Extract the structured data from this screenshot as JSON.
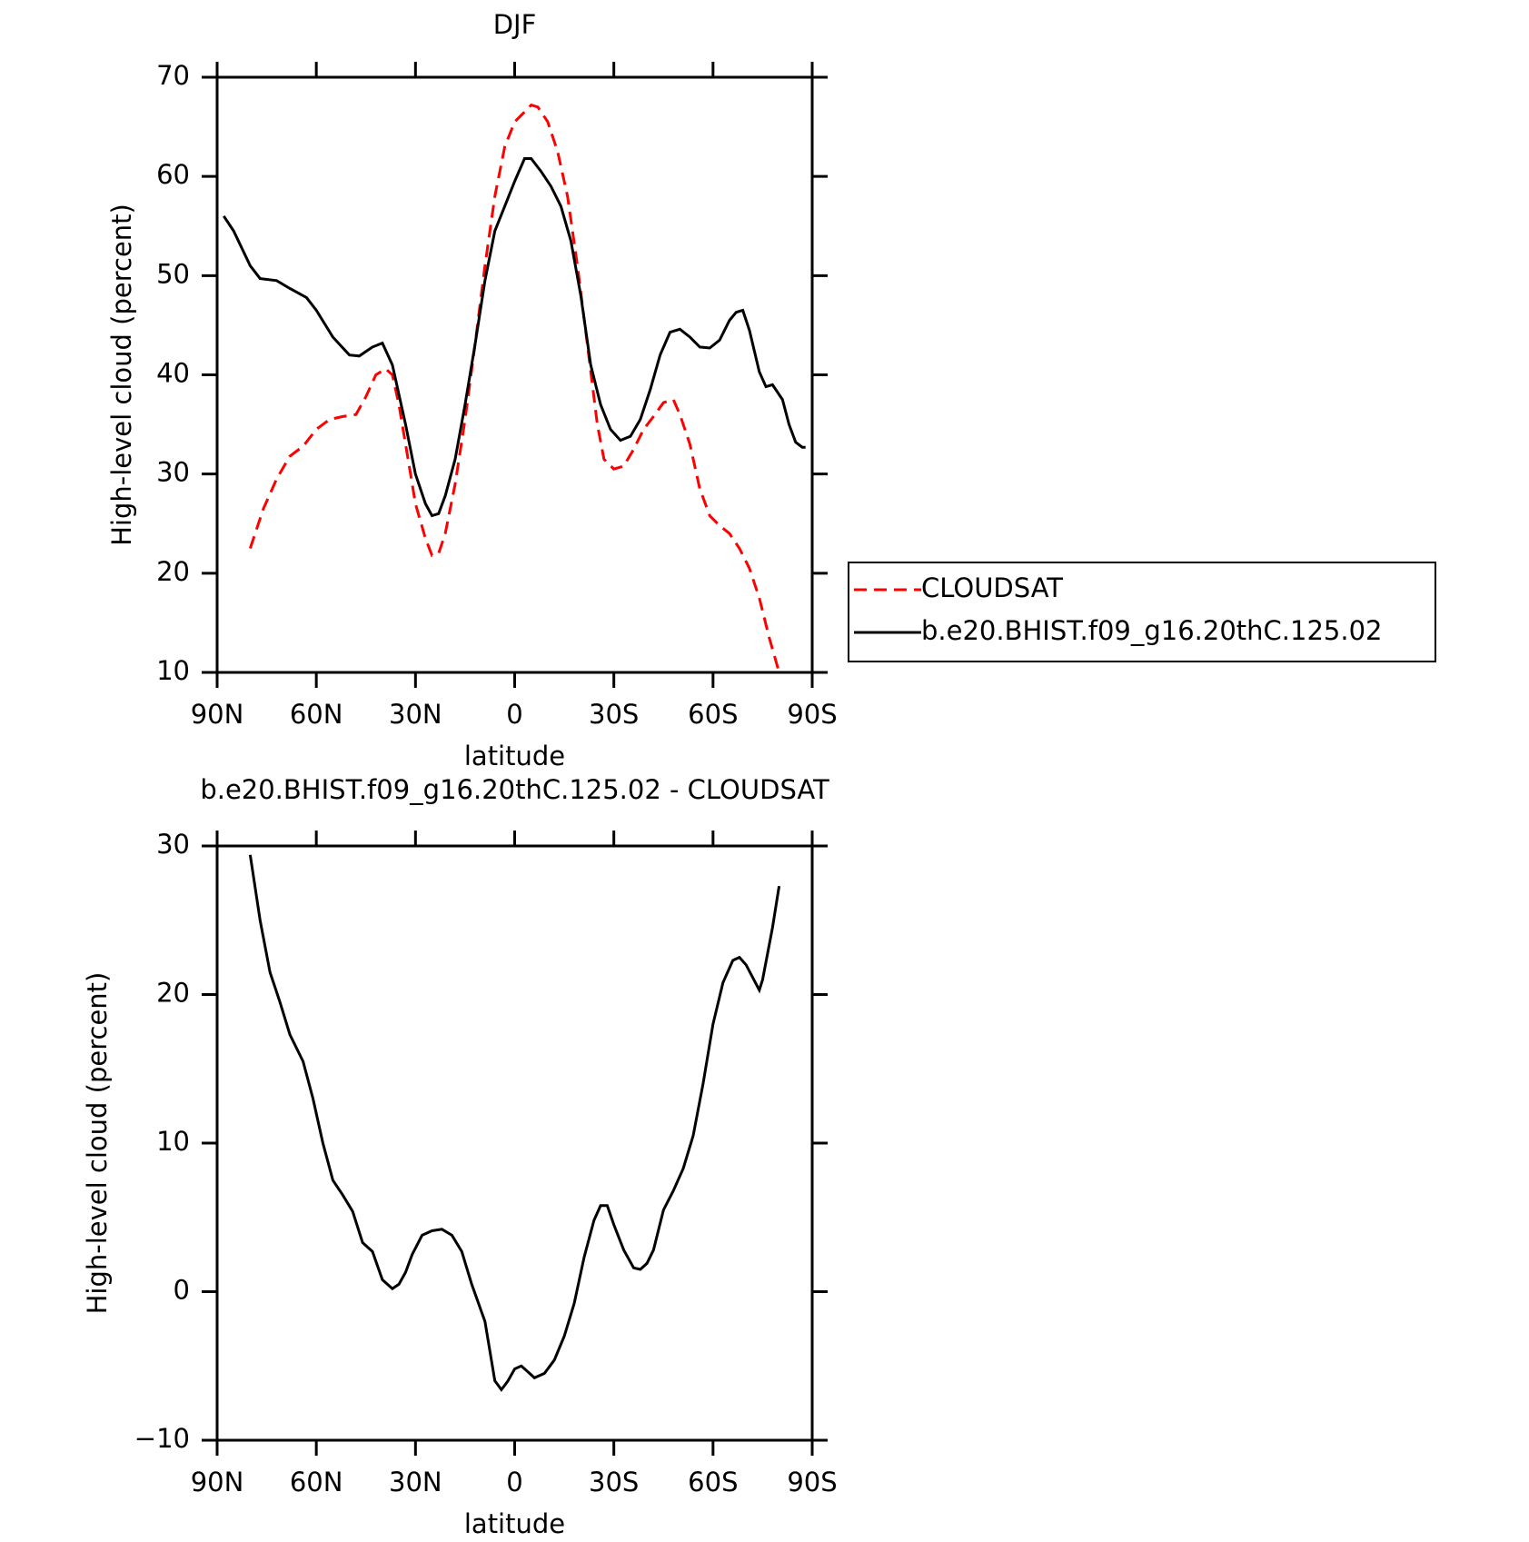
{
  "chart_data": [
    {
      "type": "line",
      "title": "DJF",
      "xlabel": "latitude",
      "ylabel": "High-level cloud (percent)",
      "xlim": [
        90,
        -90
      ],
      "ylim": [
        10,
        70
      ],
      "xticks": [
        {
          "value": 90,
          "label": "90N"
        },
        {
          "value": 60,
          "label": "60N"
        },
        {
          "value": 30,
          "label": "30N"
        },
        0,
        {
          "value": -30,
          "label": "30S"
        },
        {
          "value": -60,
          "label": "60S"
        },
        {
          "value": -90,
          "label": "90S"
        }
      ],
      "yticks": [
        10,
        20,
        30,
        40,
        50,
        60,
        70
      ],
      "grid": false,
      "legend": "right",
      "series": [
        {
          "name": "CLOUDSAT",
          "color": "#ff0000",
          "dashed": true,
          "x": [
            80,
            76,
            72,
            68,
            64,
            60,
            56,
            52,
            48,
            45,
            42,
            39,
            37,
            35,
            32,
            30,
            27,
            25,
            23,
            21,
            18,
            15,
            12,
            9,
            6,
            3,
            0,
            -3,
            -5,
            -7,
            -10,
            -13,
            -16,
            -19,
            -22,
            -25,
            -27,
            -30,
            -33,
            -36,
            -39,
            -42,
            -45,
            -48,
            -50,
            -53,
            -56,
            -59,
            -62,
            -65,
            -68,
            -71,
            -74,
            -77,
            -80
          ],
          "values": [
            22.5,
            26.5,
            29.5,
            31.8,
            32.8,
            34.5,
            35.5,
            35.8,
            36,
            37.8,
            40,
            40.6,
            40,
            37,
            31,
            27,
            23.5,
            21.8,
            22,
            24,
            29,
            35.5,
            43,
            51,
            58,
            63,
            65.5,
            66.5,
            67.2,
            67,
            65.5,
            62.5,
            58,
            51,
            43,
            35,
            31.5,
            30.5,
            30.8,
            32.5,
            34.5,
            35.8,
            37.2,
            37.5,
            36,
            33,
            28.5,
            25.8,
            24.8,
            24,
            22.5,
            20.5,
            17.5,
            13.5,
            10
          ]
        },
        {
          "name": "b.e20.BHIST.f09_g16.20thC.125.02",
          "color": "#000000",
          "dashed": false,
          "x": [
            88,
            85,
            80,
            77,
            72,
            68,
            63,
            60,
            55,
            50,
            47,
            43,
            40,
            37,
            33,
            30,
            27,
            25,
            23,
            21,
            18,
            15,
            12,
            9,
            6,
            3,
            0,
            -3,
            -5,
            -8,
            -11,
            -14,
            -17,
            -20,
            -23,
            -26,
            -29,
            -32,
            -35,
            -38,
            -41,
            -44,
            -47,
            -50,
            -53,
            -56,
            -59,
            -62,
            -65,
            -67,
            -69,
            -71,
            -74,
            -76,
            -78,
            -81,
            -83,
            -85,
            -87,
            -88
          ],
          "values": [
            56,
            54.5,
            51,
            49.7,
            49.5,
            48.7,
            47.8,
            46.5,
            43.8,
            42,
            41.9,
            42.8,
            43.2,
            41,
            35,
            30,
            27,
            25.8,
            26,
            27.8,
            31.5,
            37,
            43,
            49.5,
            54.5,
            57,
            59.5,
            61.8,
            61.8,
            60.5,
            59,
            57,
            53.5,
            48,
            41,
            37,
            34.5,
            33.4,
            33.8,
            35.5,
            38.5,
            42,
            44.3,
            44.6,
            43.8,
            42.8,
            42.7,
            43.5,
            45.5,
            46.3,
            46.5,
            44.5,
            40.3,
            38.8,
            39,
            37.5,
            35,
            33.2,
            32.7,
            32.7
          ]
        }
      ]
    },
    {
      "type": "line",
      "title": "b.e20.BHIST.f09_g16.20thC.125.02 - CLOUDSAT",
      "xlabel": "latitude",
      "ylabel": "High-level cloud (percent)",
      "xlim": [
        90,
        -90
      ],
      "ylim": [
        -10,
        30
      ],
      "xticks": [
        {
          "value": 90,
          "label": "90N"
        },
        {
          "value": 60,
          "label": "60N"
        },
        {
          "value": 30,
          "label": "30N"
        },
        0,
        {
          "value": -30,
          "label": "30S"
        },
        {
          "value": -60,
          "label": "60S"
        },
        {
          "value": -90,
          "label": "90S"
        }
      ],
      "yticks": [
        {
          "value": -10,
          "label": "−10"
        },
        0,
        10,
        20,
        30
      ],
      "grid": false,
      "color": "#000000",
      "x": [
        80,
        77,
        74,
        71,
        68,
        64,
        61,
        58,
        55,
        52,
        49,
        46,
        43,
        40,
        37,
        35,
        33,
        31,
        28,
        25,
        22,
        19,
        16,
        13,
        9,
        6,
        4,
        2,
        0,
        -2,
        -4,
        -6,
        -9,
        -12,
        -15,
        -18,
        -21,
        -24,
        -26,
        -28,
        -30,
        -33,
        -36,
        -38,
        -40,
        -42,
        -45,
        -48,
        -51,
        -54,
        -57,
        -60,
        -63,
        -66,
        -68,
        -70,
        -74,
        -75,
        -78,
        -80
      ],
      "values": [
        29.4,
        25,
        21.5,
        19.5,
        17.3,
        15.5,
        13,
        10,
        7.5,
        6.5,
        5.4,
        3.3,
        2.7,
        0.8,
        0.2,
        0.5,
        1.3,
        2.5,
        3.8,
        4.1,
        4.2,
        3.8,
        2.7,
        0.5,
        -2,
        -6,
        -6.6,
        -6,
        -5.2,
        -5,
        -5.4,
        -5.8,
        -5.5,
        -4.6,
        -3,
        -0.8,
        2.3,
        4.8,
        5.8,
        5.8,
        4.5,
        2.8,
        1.6,
        1.5,
        1.9,
        2.8,
        5.5,
        6.8,
        8.3,
        10.5,
        14,
        18,
        20.8,
        22.3,
        22.5,
        22,
        20.3,
        21,
        24.5,
        27.3
      ]
    }
  ]
}
